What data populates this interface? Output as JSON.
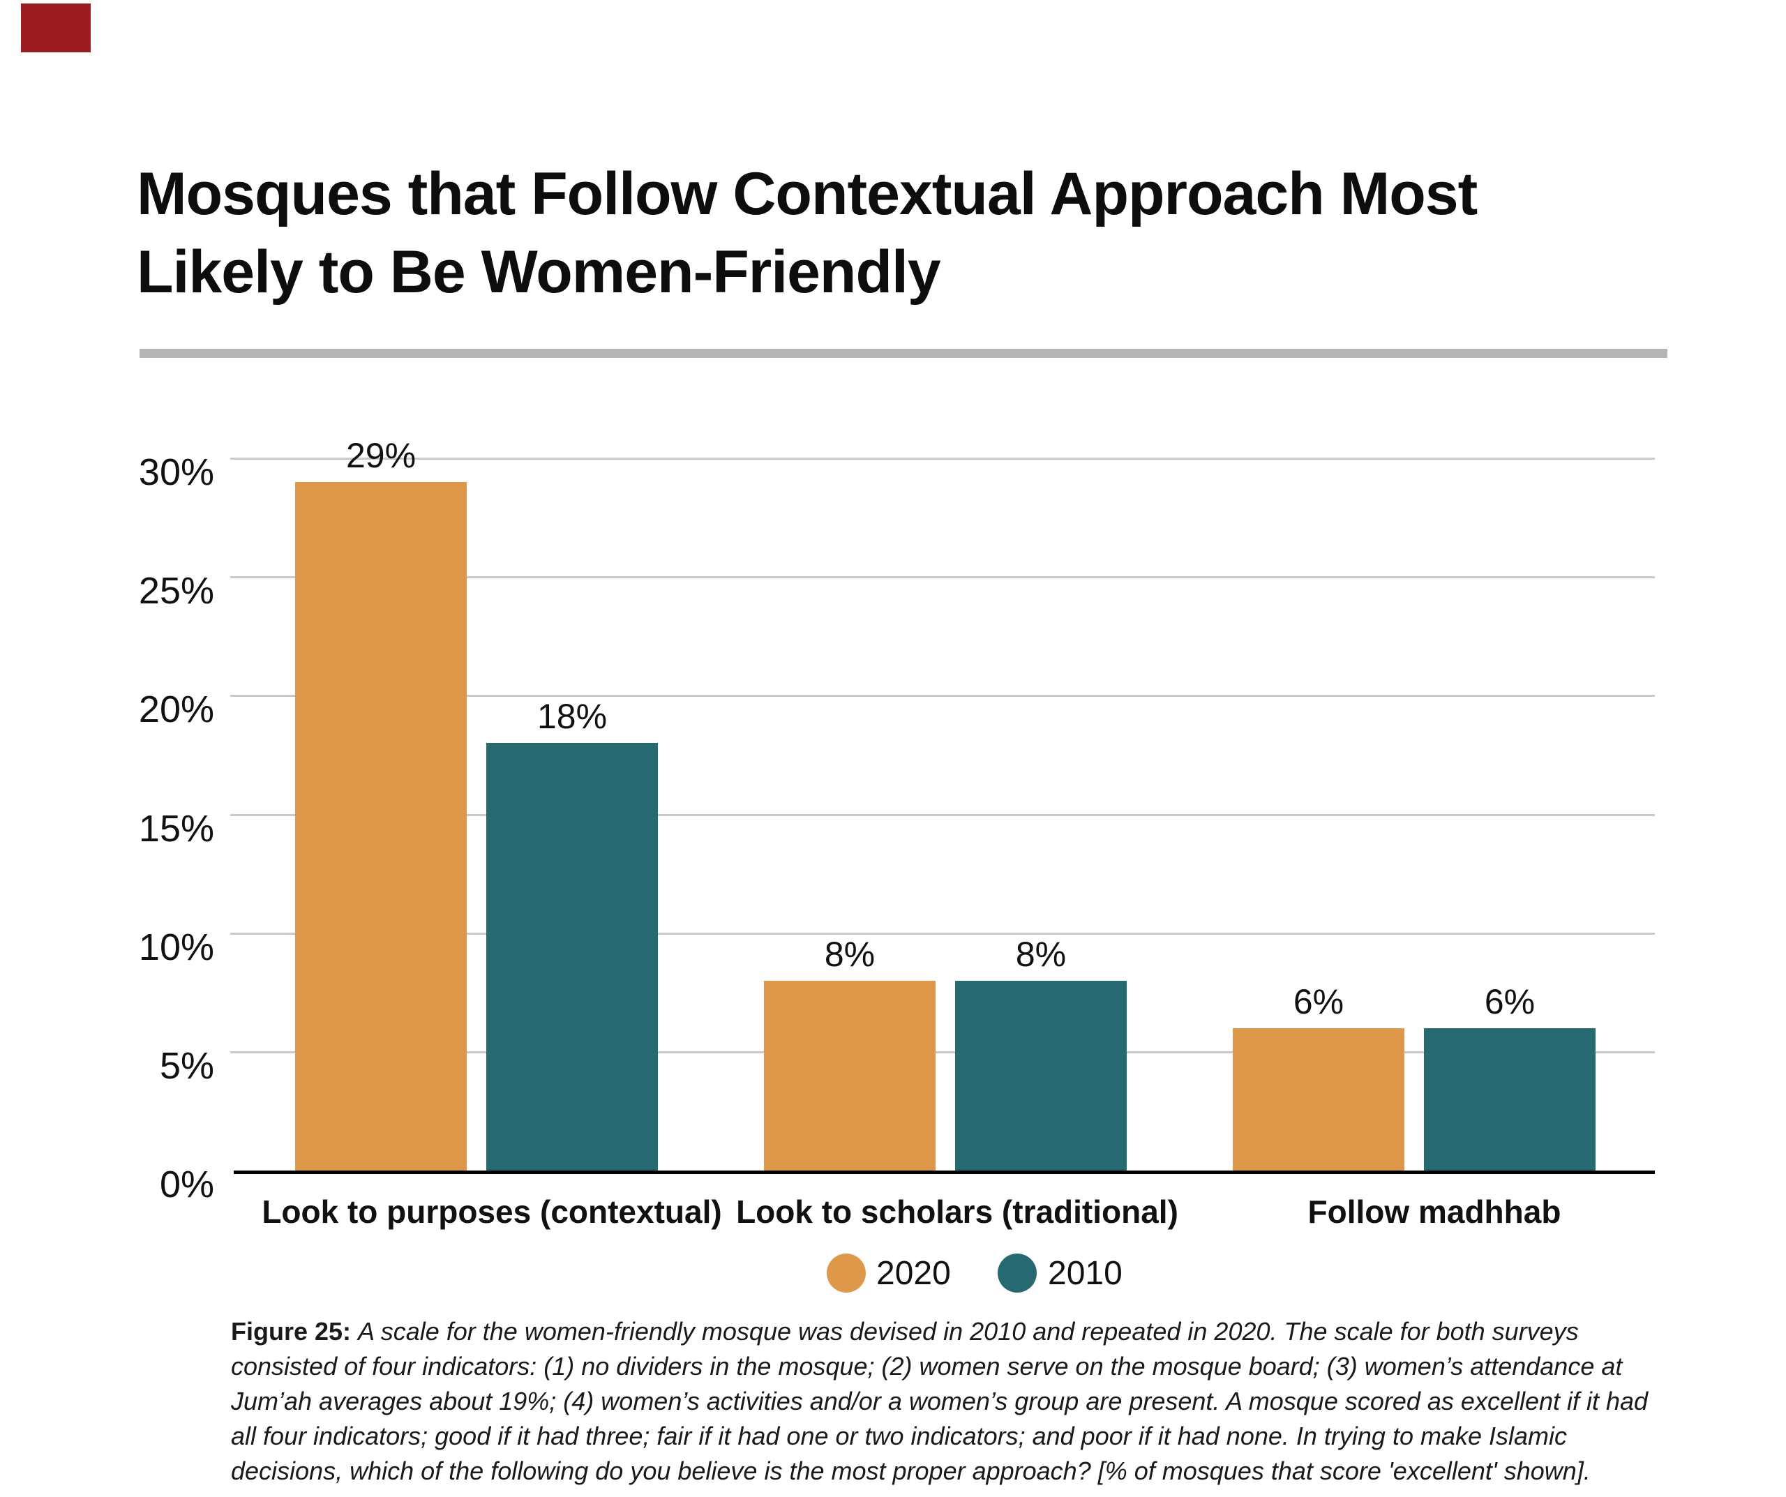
{
  "page": {
    "background": "#ffffff",
    "corner_badge_color": "#9b1c20",
    "rule_color": "#b5b5b5"
  },
  "title": {
    "line1": "Mosques that Follow Contextual Approach Most",
    "line2": "Likely to Be Women-Friendly"
  },
  "chart_data": {
    "type": "bar",
    "title": "Mosques that Follow Contextual Approach Most Likely to Be Women-Friendly",
    "categories": [
      "Look to purposes (contextual)",
      "Look to scholars (traditional)",
      "Follow madhhab"
    ],
    "series": [
      {
        "name": "2020",
        "color": "#DD9949",
        "values": [
          29,
          8,
          6
        ],
        "labels": [
          "29%",
          "8%",
          "6%"
        ]
      },
      {
        "name": "2010",
        "color": "#266971",
        "values": [
          18,
          8,
          6
        ],
        "labels": [
          "18%",
          "8%",
          "6%"
        ]
      }
    ],
    "xlabel": "",
    "ylabel": "",
    "ylim": [
      0,
      30
    ],
    "yticks": [
      {
        "label": "30%",
        "value": 30
      },
      {
        "label": "25%",
        "value": 25
      },
      {
        "label": "20%",
        "value": 20
      },
      {
        "label": "15%",
        "value": 15
      },
      {
        "label": "10%",
        "value": 10
      },
      {
        "label": "5%",
        "value": 5
      },
      {
        "label": "0%",
        "value": 0
      }
    ],
    "grid": true,
    "gridline_color": "#c9c9c9",
    "axis_color": "#000000",
    "legend_position": "bottom"
  },
  "legend": {
    "items": [
      {
        "label": "2020",
        "color": "#DD9949"
      },
      {
        "label": "2010",
        "color": "#266971"
      }
    ]
  },
  "caption": {
    "prefix": "Figure 25:",
    "line1_rest": "A scale for the women-friendly mosque was devised in 2010 and repeated in 2020. The scale for both surveys",
    "lines": [
      "consisted of four indicators: (1) no dividers in the mosque; (2) women serve on the mosque board; (3) women’s attendance at",
      "Jum’ah averages about 19%; (4) women’s activities and/or a women’s group are present. A mosque scored as excellent if it had",
      "all four indicators; good if it had three; fair if it had one or two indicators; and poor if it had none. In trying to make Islamic",
      "decisions, which of the following do you believe is the most proper approach? [% of mosques that score 'excellent' shown]."
    ]
  }
}
